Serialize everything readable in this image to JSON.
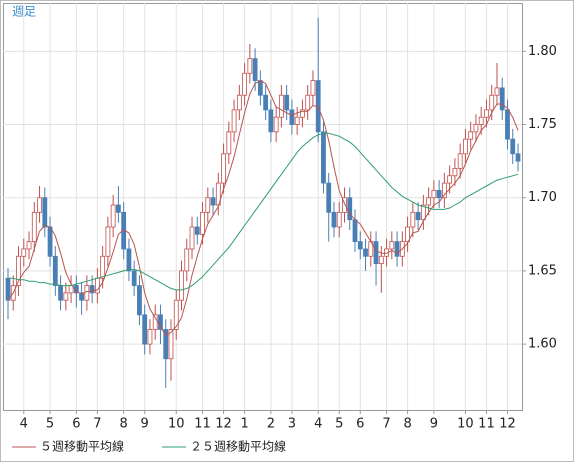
{
  "chart_data": {
    "type": "candlestick",
    "title": "週足",
    "categories": [
      null,
      null,
      null,
      "4",
      null,
      null,
      null,
      null,
      "5",
      null,
      null,
      null,
      null,
      "6",
      null,
      null,
      null,
      "7",
      null,
      null,
      null,
      null,
      "8",
      null,
      null,
      null,
      "9",
      null,
      null,
      null,
      null,
      null,
      "10",
      null,
      null,
      null,
      null,
      "11",
      null,
      null,
      null,
      "12",
      null,
      null,
      null,
      "1",
      null,
      null,
      null,
      null,
      "2",
      null,
      null,
      null,
      "3",
      null,
      null,
      null,
      null,
      "4",
      null,
      null,
      null,
      "5",
      null,
      null,
      null,
      "6",
      null,
      null,
      null,
      null,
      "7",
      null,
      null,
      null,
      "8",
      null,
      null,
      null,
      null,
      "9",
      null,
      null,
      null,
      null,
      null,
      "10",
      null,
      null,
      null,
      "11",
      null,
      null,
      null,
      "12",
      null,
      null
    ],
    "open": [
      1.645,
      1.63,
      1.64,
      1.66,
      1.665,
      1.67,
      1.69,
      1.7,
      1.68,
      1.66,
      1.64,
      1.63,
      1.635,
      1.64,
      1.635,
      1.63,
      1.64,
      1.635,
      1.645,
      1.66,
      1.68,
      1.695,
      1.69,
      1.665,
      1.65,
      1.64,
      1.62,
      1.6,
      1.61,
      1.62,
      1.61,
      1.59,
      1.61,
      1.63,
      1.65,
      1.665,
      1.68,
      1.675,
      1.69,
      1.7,
      1.695,
      1.71,
      1.73,
      1.745,
      1.76,
      1.77,
      1.785,
      1.795,
      1.78,
      1.77,
      1.76,
      1.745,
      1.755,
      1.77,
      1.76,
      1.75,
      1.755,
      1.76,
      1.77,
      1.78,
      1.745,
      1.71,
      1.69,
      1.68,
      1.69,
      1.7,
      1.685,
      1.67,
      1.665,
      1.66,
      1.67,
      1.655,
      1.66,
      1.665,
      1.67,
      1.66,
      1.67,
      1.68,
      1.69,
      1.685,
      1.695,
      1.7,
      1.705,
      1.7,
      1.71,
      1.715,
      1.72,
      1.73,
      1.74,
      1.745,
      1.75,
      1.755,
      1.76,
      1.77,
      1.775,
      1.76,
      1.74,
      1.73
    ],
    "high": [
      1.652,
      1.647,
      1.667,
      1.672,
      1.677,
      1.697,
      1.708,
      1.707,
      1.687,
      1.667,
      1.647,
      1.642,
      1.647,
      1.647,
      1.642,
      1.647,
      1.647,
      1.652,
      1.667,
      1.687,
      1.702,
      1.708,
      1.697,
      1.672,
      1.657,
      1.647,
      1.627,
      1.617,
      1.627,
      1.627,
      1.617,
      1.617,
      1.637,
      1.657,
      1.672,
      1.687,
      1.687,
      1.697,
      1.707,
      1.707,
      1.717,
      1.737,
      1.752,
      1.767,
      1.777,
      1.792,
      1.805,
      1.802,
      1.787,
      1.777,
      1.767,
      1.762,
      1.777,
      1.777,
      1.767,
      1.762,
      1.767,
      1.777,
      1.787,
      1.823,
      1.752,
      1.717,
      1.697,
      1.697,
      1.707,
      1.707,
      1.692,
      1.677,
      1.672,
      1.677,
      1.677,
      1.667,
      1.672,
      1.677,
      1.677,
      1.677,
      1.687,
      1.697,
      1.697,
      1.702,
      1.707,
      1.712,
      1.712,
      1.717,
      1.722,
      1.727,
      1.737,
      1.747,
      1.752,
      1.757,
      1.762,
      1.767,
      1.777,
      1.792,
      1.782,
      1.767,
      1.747,
      1.737
    ],
    "low": [
      1.617,
      1.623,
      1.633,
      1.653,
      1.658,
      1.663,
      1.683,
      1.673,
      1.653,
      1.633,
      1.623,
      1.623,
      1.628,
      1.625,
      1.62,
      1.623,
      1.628,
      1.628,
      1.638,
      1.653,
      1.673,
      1.683,
      1.658,
      1.643,
      1.633,
      1.613,
      1.593,
      1.593,
      1.603,
      1.6,
      1.57,
      1.575,
      1.603,
      1.623,
      1.643,
      1.658,
      1.668,
      1.668,
      1.683,
      1.688,
      1.688,
      1.703,
      1.723,
      1.738,
      1.753,
      1.763,
      1.778,
      1.773,
      1.763,
      1.753,
      1.738,
      1.738,
      1.748,
      1.753,
      1.743,
      1.743,
      1.748,
      1.753,
      1.763,
      1.738,
      1.703,
      1.67,
      1.673,
      1.673,
      1.683,
      1.678,
      1.663,
      1.658,
      1.65,
      1.653,
      1.64,
      1.635,
      1.653,
      1.658,
      1.653,
      1.653,
      1.663,
      1.673,
      1.678,
      1.678,
      1.688,
      1.693,
      1.693,
      1.693,
      1.703,
      1.708,
      1.713,
      1.723,
      1.733,
      1.738,
      1.743,
      1.748,
      1.753,
      1.763,
      1.753,
      1.733,
      1.723,
      1.718
    ],
    "close": [
      1.63,
      1.64,
      1.66,
      1.665,
      1.67,
      1.69,
      1.7,
      1.68,
      1.66,
      1.64,
      1.63,
      1.635,
      1.64,
      1.635,
      1.63,
      1.64,
      1.635,
      1.645,
      1.66,
      1.68,
      1.695,
      1.69,
      1.665,
      1.65,
      1.64,
      1.62,
      1.6,
      1.61,
      1.62,
      1.61,
      1.59,
      1.61,
      1.63,
      1.65,
      1.665,
      1.68,
      1.675,
      1.69,
      1.7,
      1.695,
      1.71,
      1.73,
      1.745,
      1.76,
      1.77,
      1.785,
      1.795,
      1.78,
      1.77,
      1.76,
      1.745,
      1.755,
      1.77,
      1.76,
      1.75,
      1.755,
      1.76,
      1.77,
      1.78,
      1.745,
      1.71,
      1.69,
      1.68,
      1.69,
      1.7,
      1.685,
      1.67,
      1.665,
      1.66,
      1.67,
      1.655,
      1.66,
      1.665,
      1.67,
      1.66,
      1.67,
      1.68,
      1.69,
      1.685,
      1.695,
      1.7,
      1.705,
      1.7,
      1.71,
      1.715,
      1.72,
      1.73,
      1.74,
      1.745,
      1.75,
      1.755,
      1.76,
      1.77,
      1.775,
      1.76,
      1.74,
      1.73,
      1.725
    ],
    "up_color": "#c0504d",
    "down_color": "#4a7fb5",
    "series": [
      {
        "name": "５週移動平均線",
        "color": "#b85450",
        "values": [
          1.63,
          1.635,
          1.643,
          1.649,
          1.653,
          1.665,
          1.677,
          1.681,
          1.68,
          1.674,
          1.662,
          1.649,
          1.641,
          1.636,
          1.634,
          1.636,
          1.636,
          1.637,
          1.642,
          1.652,
          1.663,
          1.675,
          1.678,
          1.676,
          1.668,
          1.653,
          1.635,
          1.624,
          1.618,
          1.612,
          1.606,
          1.608,
          1.612,
          1.618,
          1.631,
          1.647,
          1.66,
          1.672,
          1.682,
          1.688,
          1.694,
          1.706,
          1.716,
          1.728,
          1.743,
          1.758,
          1.771,
          1.778,
          1.78,
          1.778,
          1.77,
          1.762,
          1.76,
          1.758,
          1.756,
          1.758,
          1.759,
          1.759,
          1.763,
          1.762,
          1.753,
          1.739,
          1.721,
          1.705,
          1.696,
          1.689,
          1.685,
          1.682,
          1.676,
          1.67,
          1.664,
          1.662,
          1.662,
          1.664,
          1.662,
          1.665,
          1.669,
          1.676,
          1.677,
          1.684,
          1.69,
          1.695,
          1.697,
          1.702,
          1.706,
          1.71,
          1.715,
          1.723,
          1.732,
          1.739,
          1.746,
          1.75,
          1.758,
          1.764,
          1.764,
          1.761,
          1.755,
          1.746
        ]
      },
      {
        "name": "２５週移動平均線",
        "color": "#2e9e6e",
        "values": [
          1.645,
          1.645,
          1.644,
          1.644,
          1.643,
          1.643,
          1.642,
          1.642,
          1.641,
          1.641,
          1.64,
          1.64,
          1.64,
          1.641,
          1.642,
          1.643,
          1.644,
          1.645,
          1.646,
          1.647,
          1.648,
          1.649,
          1.65,
          1.651,
          1.651,
          1.65,
          1.648,
          1.646,
          1.644,
          1.642,
          1.64,
          1.638,
          1.637,
          1.637,
          1.638,
          1.64,
          1.643,
          1.646,
          1.65,
          1.654,
          1.658,
          1.662,
          1.666,
          1.671,
          1.676,
          1.681,
          1.686,
          1.691,
          1.696,
          1.701,
          1.706,
          1.711,
          1.716,
          1.721,
          1.726,
          1.731,
          1.735,
          1.738,
          1.741,
          1.743,
          1.744,
          1.744,
          1.743,
          1.742,
          1.74,
          1.738,
          1.735,
          1.731,
          1.727,
          1.723,
          1.719,
          1.715,
          1.711,
          1.707,
          1.704,
          1.701,
          1.699,
          1.697,
          1.695,
          1.694,
          1.693,
          1.692,
          1.692,
          1.692,
          1.693,
          1.695,
          1.697,
          1.7,
          1.702,
          1.704,
          1.706,
          1.708,
          1.71,
          1.712,
          1.713,
          1.714,
          1.715,
          1.716
        ]
      }
    ],
    "ylim": [
      1.555,
      1.833
    ],
    "yticks": [
      {
        "value": 1.6,
        "label": "1.60"
      },
      {
        "value": 1.65,
        "label": "1.65"
      },
      {
        "value": 1.7,
        "label": "1.70"
      },
      {
        "value": 1.75,
        "label": "1.75"
      },
      {
        "value": 1.8,
        "label": "1.80"
      }
    ],
    "grid": true
  }
}
